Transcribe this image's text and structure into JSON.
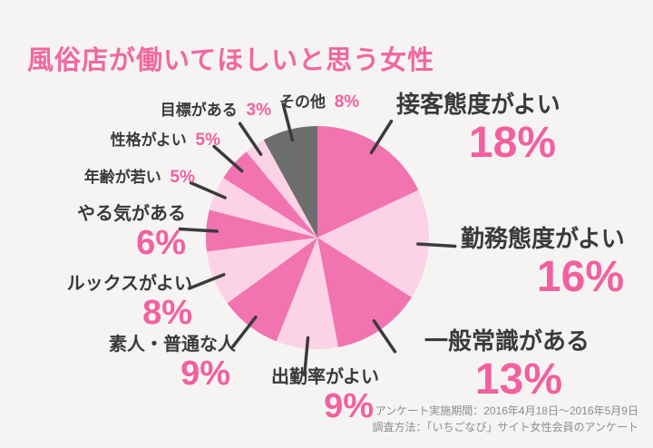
{
  "page": {
    "background": "#f5f4f2"
  },
  "title": {
    "text": "風俗店が働いてほしいと思う女性",
    "color": "#f2679f"
  },
  "footnote": {
    "line1": "アンケート実施期間：2016年4月18日〜2016年5月9日",
    "line2": "調査方法：「いちごなび」サイト女性会員のアンケート"
  },
  "colors": {
    "pink_strong": "#f173b0",
    "pink_light": "#fbd2e6",
    "gray_slice": "#6e6e6e",
    "text_dark": "#3a3a3a",
    "percent_pink": "#f2609f",
    "leader_line": "#3b3b3b"
  },
  "chart_data": {
    "type": "pie",
    "title": "風俗店が働いてほしいと思う女性",
    "unit": "%",
    "start_angle_deg": 0,
    "direction": "clockwise",
    "legend": "none",
    "slices": [
      {
        "label": "接客態度がよい",
        "value": 18,
        "pct": "18%",
        "color": "#f173b0"
      },
      {
        "label": "勤務態度がよい",
        "value": 16,
        "pct": "16%",
        "color": "#fbd2e6"
      },
      {
        "label": "一般常識がある",
        "value": 13,
        "pct": "13%",
        "color": "#f173b0"
      },
      {
        "label": "出勤率がよい",
        "value": 9,
        "pct": "9%",
        "color": "#fbd2e6"
      },
      {
        "label": "素人・普通な人",
        "value": 9,
        "pct": "9%",
        "color": "#f173b0"
      },
      {
        "label": "ルックスがよい",
        "value": 8,
        "pct": "8%",
        "color": "#fbd2e6"
      },
      {
        "label": "やる気がある",
        "value": 6,
        "pct": "6%",
        "color": "#f173b0"
      },
      {
        "label": "年齢が若い",
        "value": 5,
        "pct": "5%",
        "color": "#fbd2e6"
      },
      {
        "label": "性格がよい",
        "value": 5,
        "pct": "5%",
        "color": "#f173b0"
      },
      {
        "label": "目標がある",
        "value": 3,
        "pct": "3%",
        "color": "#fbd2e6"
      },
      {
        "label": "その他",
        "value": 8,
        "pct": "8%",
        "color": "#6e6e6e"
      }
    ]
  }
}
